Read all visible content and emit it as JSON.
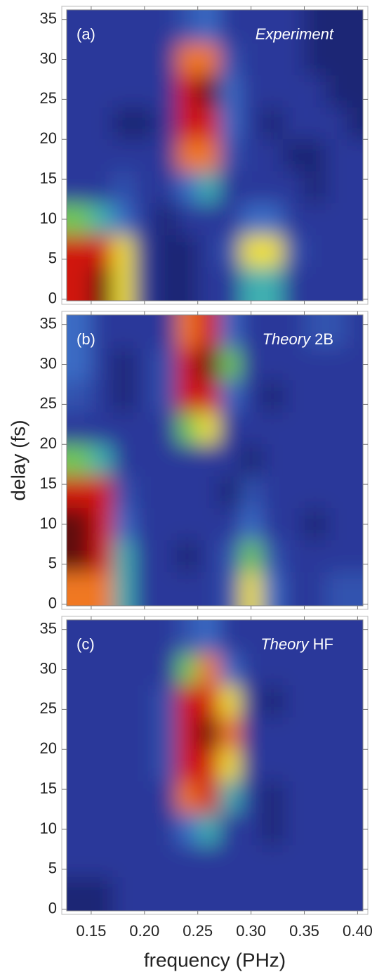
{
  "chart_data": [
    {
      "type": "heatmap",
      "panel_label": "(a)",
      "annotation_parts": [
        {
          "text": "Experiment",
          "italic": true
        }
      ],
      "x": [
        0.14,
        0.16,
        0.18,
        0.2,
        0.22,
        0.24,
        0.26,
        0.28,
        0.3,
        0.32,
        0.34,
        0.36,
        0.38,
        0.4
      ],
      "y": [
        34,
        30,
        26,
        22,
        18,
        14,
        10,
        6,
        2
      ],
      "values": [
        [
          2,
          2,
          2,
          2,
          2,
          3,
          4,
          2,
          2,
          2,
          2,
          1,
          1,
          1
        ],
        [
          2,
          2,
          2,
          2,
          2,
          8,
          8,
          3,
          2,
          2,
          2,
          1,
          1,
          1
        ],
        [
          2,
          2,
          2,
          2,
          2,
          9,
          10,
          4,
          2,
          2,
          2,
          2,
          1,
          1
        ],
        [
          2,
          2,
          1,
          1,
          2,
          9,
          9,
          4,
          2,
          1,
          2,
          2,
          2,
          1
        ],
        [
          2,
          2,
          2,
          2,
          2,
          8,
          8,
          3,
          2,
          2,
          1,
          1,
          2,
          2
        ],
        [
          2,
          2,
          3,
          2,
          2,
          4,
          5,
          2,
          2,
          2,
          2,
          1,
          2,
          2
        ],
        [
          6,
          5,
          4,
          2,
          1,
          2,
          2,
          2,
          4,
          4,
          2,
          2,
          2,
          2
        ],
        [
          9,
          9,
          7,
          2,
          1,
          1,
          2,
          3,
          7,
          7,
          3,
          2,
          2,
          2
        ],
        [
          9,
          10,
          7,
          2,
          1,
          1,
          2,
          2,
          5,
          5,
          2,
          2,
          2,
          2
        ]
      ],
      "xlim": [
        0.127,
        0.405
      ],
      "ylim": [
        -0.2,
        36.2
      ],
      "yticks": [
        0,
        5,
        10,
        15,
        20,
        25,
        30,
        35
      ],
      "colorscale": [
        [
          0,
          "#0e1450"
        ],
        [
          2,
          "#2a389a"
        ],
        [
          4,
          "#3a6cc4"
        ],
        [
          5,
          "#40b0b0"
        ],
        [
          6,
          "#70c858"
        ],
        [
          7,
          "#f0e030"
        ],
        [
          8,
          "#f07820"
        ],
        [
          9,
          "#d01810"
        ],
        [
          10,
          "#600808"
        ]
      ]
    },
    {
      "type": "heatmap",
      "panel_label": "(b)",
      "annotation_parts": [
        {
          "text": "Theory",
          "italic": true
        },
        {
          "text": "2B",
          "italic": false
        }
      ],
      "ylabel": "delay (fs)",
      "x": [
        0.14,
        0.16,
        0.18,
        0.2,
        0.22,
        0.24,
        0.26,
        0.28,
        0.3,
        0.32,
        0.34,
        0.36,
        0.38,
        0.4
      ],
      "y": [
        34,
        30,
        26,
        22,
        18,
        14,
        10,
        6,
        2
      ],
      "values": [
        [
          4,
          2,
          2,
          2,
          2,
          8,
          9,
          4,
          2,
          2,
          2,
          3,
          3,
          2
        ],
        [
          4,
          2,
          1,
          2,
          3,
          9,
          10,
          6,
          2,
          2,
          2,
          2,
          2,
          2
        ],
        [
          3,
          2,
          1,
          2,
          3,
          9,
          9,
          4,
          2,
          1,
          2,
          2,
          2,
          2
        ],
        [
          2,
          2,
          2,
          2,
          2,
          6,
          7,
          2,
          2,
          2,
          2,
          2,
          2,
          2
        ],
        [
          6,
          5,
          2,
          2,
          2,
          2,
          2,
          2,
          1,
          2,
          2,
          2,
          2,
          2
        ],
        [
          9,
          9,
          3,
          2,
          2,
          2,
          2,
          1,
          3,
          2,
          2,
          2,
          2,
          2
        ],
        [
          10,
          9,
          4,
          2,
          2,
          2,
          2,
          2,
          4,
          2,
          2,
          1,
          2,
          2
        ],
        [
          10,
          9,
          5,
          2,
          2,
          1,
          2,
          3,
          6,
          3,
          2,
          2,
          2,
          2
        ],
        [
          8,
          8,
          5,
          2,
          2,
          2,
          2,
          3,
          7,
          4,
          2,
          2,
          3,
          3
        ]
      ],
      "xlim": [
        0.127,
        0.405
      ],
      "ylim": [
        -0.2,
        36.2
      ],
      "yticks": [
        0,
        5,
        10,
        15,
        20,
        25,
        30,
        35
      ],
      "colorscale": [
        [
          0,
          "#0e1450"
        ],
        [
          2,
          "#2a389a"
        ],
        [
          4,
          "#3a6cc4"
        ],
        [
          5,
          "#40b0b0"
        ],
        [
          6,
          "#70c858"
        ],
        [
          7,
          "#f0e030"
        ],
        [
          8,
          "#f07820"
        ],
        [
          9,
          "#d01810"
        ],
        [
          10,
          "#600808"
        ]
      ]
    },
    {
      "type": "heatmap",
      "panel_label": "(c)",
      "annotation_parts": [
        {
          "text": "Theory",
          "italic": true
        },
        {
          "text": "HF",
          "italic": false
        }
      ],
      "xlabel": "frequency (PHz)",
      "x": [
        0.14,
        0.16,
        0.18,
        0.2,
        0.22,
        0.24,
        0.26,
        0.28,
        0.3,
        0.32,
        0.34,
        0.36,
        0.38,
        0.4
      ],
      "y": [
        34,
        30,
        26,
        22,
        18,
        14,
        10,
        6,
        2
      ],
      "values": [
        [
          2,
          2,
          2,
          2,
          2,
          3,
          4,
          2,
          2,
          2,
          2,
          2,
          2,
          2
        ],
        [
          2,
          2,
          2,
          2,
          2,
          6,
          8,
          4,
          2,
          2,
          2,
          2,
          2,
          2
        ],
        [
          2,
          2,
          2,
          2,
          3,
          9,
          9,
          7,
          2,
          1,
          2,
          2,
          2,
          2
        ],
        [
          2,
          2,
          2,
          2,
          3,
          9,
          10,
          8,
          2,
          2,
          2,
          2,
          2,
          2
        ],
        [
          2,
          2,
          2,
          2,
          3,
          9,
          9,
          7,
          2,
          2,
          2,
          2,
          2,
          2
        ],
        [
          2,
          2,
          2,
          2,
          2,
          8,
          9,
          5,
          2,
          1,
          2,
          2,
          2,
          2
        ],
        [
          2,
          2,
          2,
          2,
          2,
          4,
          5,
          2,
          2,
          1,
          2,
          2,
          2,
          2
        ],
        [
          2,
          2,
          2,
          2,
          2,
          2,
          2,
          2,
          2,
          2,
          2,
          2,
          2,
          2
        ],
        [
          1,
          1,
          2,
          2,
          2,
          2,
          2,
          2,
          2,
          2,
          2,
          2,
          2,
          2
        ]
      ],
      "xlim": [
        0.127,
        0.405
      ],
      "ylim": [
        -0.2,
        36.2
      ],
      "yticks": [
        0,
        5,
        10,
        15,
        20,
        25,
        30,
        35
      ],
      "xticks": [
        0.15,
        {
          "value": 0.2,
          "label": "0.20"
        },
        0.25,
        {
          "value": 0.3,
          "label": "0.30"
        },
        0.35,
        {
          "value": 0.4,
          "label": "0.40"
        }
      ],
      "colorscale": [
        [
          0,
          "#0e1450"
        ],
        [
          2,
          "#2a389a"
        ],
        [
          4,
          "#3a6cc4"
        ],
        [
          5,
          "#40b0b0"
        ],
        [
          6,
          "#70c858"
        ],
        [
          7,
          "#f0e030"
        ],
        [
          8,
          "#f07820"
        ],
        [
          9,
          "#d01810"
        ],
        [
          10,
          "#600808"
        ]
      ]
    }
  ]
}
